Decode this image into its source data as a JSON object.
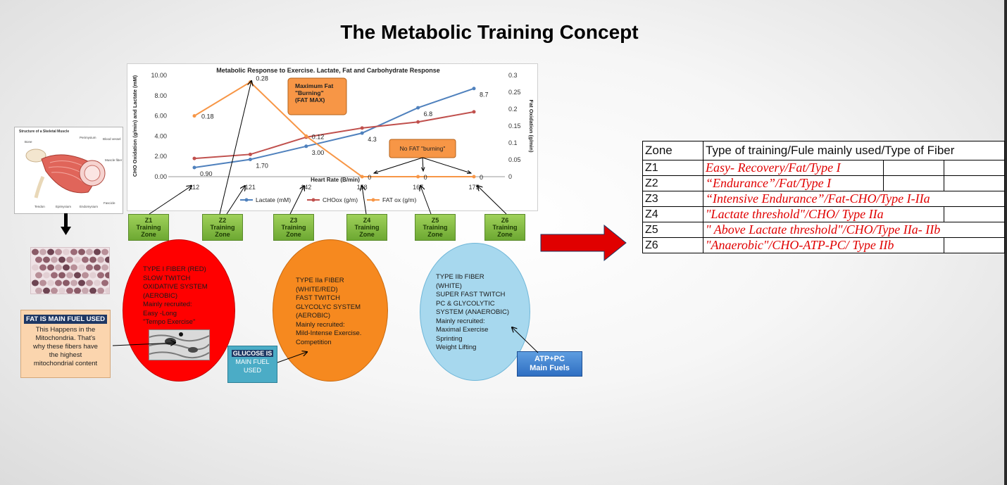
{
  "title": "The Metabolic Training Concept",
  "chart_data": {
    "type": "line",
    "title": "Metabolic Response to Exercise. Lactate, Fat and Carbohydrate Response",
    "xlabel": "Heart Rate (B/min)",
    "ylabel_left": "CHO Oxidation (g/min) and Lactate (mM)",
    "ylabel_right": "Fat Oxidation (g/min)",
    "categories": [
      "112",
      "121",
      "142",
      "158",
      "167",
      "175"
    ],
    "y_left_ticks": [
      "0.00",
      "2.00",
      "4.00",
      "6.00",
      "8.00",
      "10.00"
    ],
    "y_right_ticks": [
      "0",
      "0.05",
      "0.1",
      "0.15",
      "0.2",
      "0.25",
      "0.3"
    ],
    "ylim_left": [
      0,
      10
    ],
    "ylim_right": [
      0,
      0.3
    ],
    "series": [
      {
        "name": "Lactate (mM)",
        "axis": "left",
        "color": "#4f81bd",
        "values": [
          0.9,
          1.7,
          3.0,
          4.3,
          6.8,
          8.7
        ],
        "labels": [
          "0.90",
          "1.70",
          "3.00",
          "4.3",
          "6.8",
          "8.7"
        ]
      },
      {
        "name": "CHOox (g/m)",
        "axis": "left",
        "color": "#c0504d",
        "values": [
          1.8,
          2.2,
          3.9,
          4.8,
          5.4,
          6.4
        ],
        "labels": []
      },
      {
        "name": "FAT ox (g/m)",
        "axis": "right",
        "color": "#f79646",
        "values": [
          0.18,
          0.28,
          0.12,
          0,
          0,
          0
        ],
        "labels": [
          "0.18",
          "0.28",
          "0.12",
          "0",
          "0",
          "0"
        ]
      }
    ],
    "callouts": {
      "fatmax": "Maximum Fat \"Burning\" (FAT MAX)",
      "nofat": "No FAT \"burning\""
    },
    "legend_position": "bottom"
  },
  "zones": [
    {
      "label": "Z1\nTraining\nZone"
    },
    {
      "label": "Z2\nTraining\nZone"
    },
    {
      "label": "Z3\nTraining\nZone"
    },
    {
      "label": "Z4\nTraining\nZone"
    },
    {
      "label": "Z5\nTraining\nZone"
    },
    {
      "label": "Z6\nTraining\nZone"
    }
  ],
  "muscle_diagram": {
    "title": "Structure of a Skeletal Muscle",
    "labels": [
      "Bone",
      "Perimysium",
      "Blood vessel",
      "Muscle fiber",
      "Tendon",
      "Epimysium",
      "Endomysium",
      "Fascicle"
    ]
  },
  "fibers": {
    "type1": "TYPE I FIBER (RED)\nSLOW TWITCH\nOXIDATIVE SYSTEM\n(AEROBIC)\nMainly recruited:\n        Easy -Long\n   \"Tempo Exercise\"",
    "type2a": "TYPE IIa FIBER\n(WHITE/RED)\nFAST TWITCH\nGLYCOLYC SYSTEM\n(AEROBIC)\nMainly recruited:\nMild-Intense Exercise.\n       Competition",
    "type2b": "TYPE IIb FIBER\n(WHITE)\nSUPER FAST TWITCH\nPC & GLYCOLYTIC\nSYSTEM (ANAEROBIC)\n      Mainly recruited:\n      Maximal Exercise\n           Sprinting\n        Weight Lifting"
  },
  "fat_callout": {
    "heading": "FAT IS MAIN FUEL USED",
    "body": "This Happens in the\nMitochondria. That's\nwhy these fibers have\nthe highest\nmitochondrial content"
  },
  "glucose_callout": {
    "heading": "GLUCOSE IS",
    "line2": "MAIN FUEL",
    "line3": "USED"
  },
  "atp_callout": "ATP+PC\nMain Fuels",
  "table": {
    "headers": [
      "Zone",
      "Type of training/Fule mainly used/Type of Fiber"
    ],
    "rows": [
      {
        "zone": "Z1",
        "desc": "Easy- Recovery/Fat/Type I"
      },
      {
        "zone": "Z2",
        "desc": "“Endurance”/Fat/Type I"
      },
      {
        "zone": "Z3",
        "desc": "“Intensive Endurance”/Fat-CHO/Type I-IIa"
      },
      {
        "zone": "Z4",
        "desc": "\"Lactate threshold\"/CHO/ Type IIa"
      },
      {
        "zone": "Z5",
        "desc": "\" Above Lactate threshold\"/CHO/Type IIa- IIb"
      },
      {
        "zone": "Z6",
        "desc": "\"Anaerobic\"/CHO-ATP-PC/ Type IIb"
      }
    ]
  },
  "colors": {
    "zone_green": "#7ab83c",
    "arrow_red": "#e00000",
    "type1": "#ff0000",
    "type2a": "#f6891f",
    "type2b": "#a7d8ee"
  }
}
